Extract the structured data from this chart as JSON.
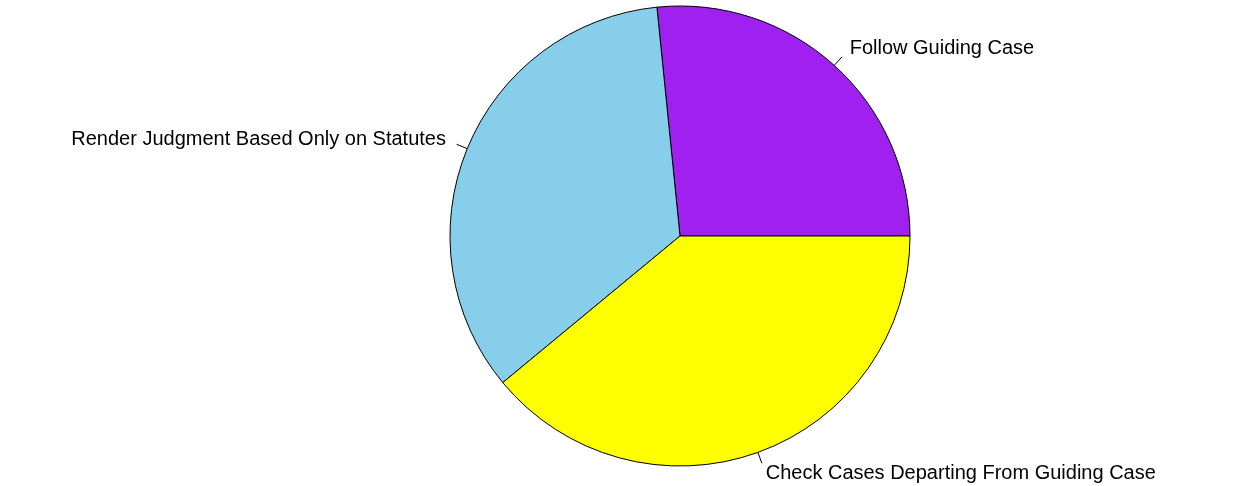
{
  "chart_data": {
    "type": "pie",
    "categories": [
      "Follow Guiding Case",
      "Render Judgment Based Only on Statutes",
      "Check Cases Departing From Guiding Case"
    ],
    "values": [
      26.6,
      34.4,
      39.0
    ],
    "colors": [
      "#a020f0",
      "#87ceeb",
      "#ffff00"
    ]
  }
}
